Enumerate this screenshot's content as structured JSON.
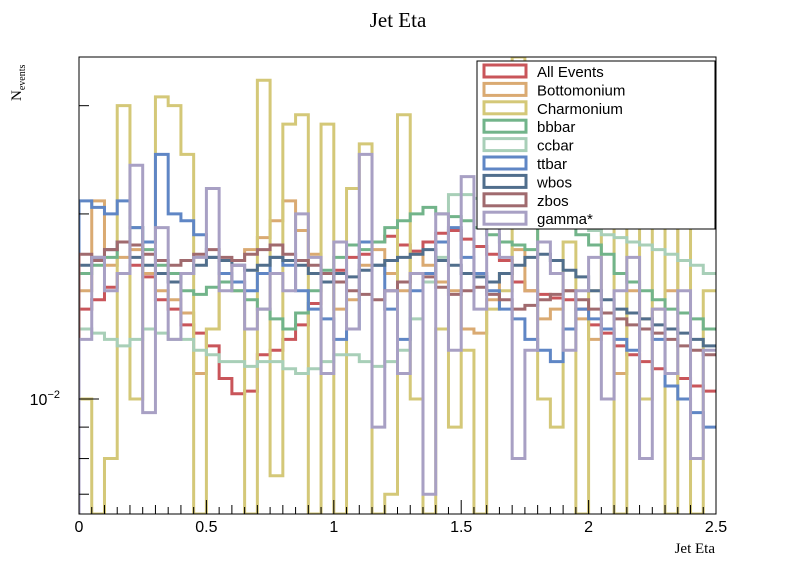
{
  "chart_data": {
    "type": "histogram-step",
    "title": "Jet Eta",
    "xlabel": "Jet Eta",
    "ylabel": "N",
    "ylabel_subscript": "events",
    "xlim": [
      0,
      2.5
    ],
    "ylim": [
      0.0065,
      0.036
    ],
    "yscale": "log",
    "x_ticks": [
      {
        "value": 0,
        "label": "0"
      },
      {
        "value": 0.5,
        "label": "0.5"
      },
      {
        "value": 1,
        "label": "1"
      },
      {
        "value": 1.5,
        "label": "1.5"
      },
      {
        "value": 2,
        "label": "2"
      },
      {
        "value": 2.5,
        "label": "2.5"
      }
    ],
    "y_major_tick": {
      "value": 0.01,
      "label_base": "10",
      "label_exp": "−2"
    },
    "y_minor_ticks": [
      0.007,
      0.008,
      0.009,
      0.02,
      0.03
    ],
    "grid": false,
    "legend_position": "top-right",
    "bin_edges_start": 0,
    "bin_width": 0.05,
    "series": [
      {
        "name": "All Events",
        "color": "#c9555a",
        "values": [
          0.014,
          0.0145,
          0.0152,
          0.016,
          0.0165,
          0.0158,
          0.0145,
          0.014,
          0.0132,
          0.0128,
          0.0122,
          0.0108,
          0.0102,
          0.0103,
          0.0118,
          0.012,
          0.0125,
          0.0132,
          0.0143,
          0.0155,
          0.0162,
          0.017,
          0.0172,
          0.018,
          0.0184,
          0.0178,
          0.0174,
          0.018,
          0.0186,
          0.0188,
          0.0182,
          0.0177,
          0.0172,
          0.0168,
          0.0155,
          0.015,
          0.0148,
          0.0146,
          0.0145,
          0.014,
          0.0132,
          0.0128,
          0.0122,
          0.0118,
          0.0115,
          0.0112,
          0.011,
          0.0108,
          0.0105,
          0.0103
        ]
      },
      {
        "name": "Bottomonium",
        "color": "#daaa72",
        "values": [
          0.015,
          0.021,
          0.0165,
          0.017,
          0.0175,
          0.016,
          0.015,
          0.0145,
          0.0138,
          0.011,
          0.013,
          0.0155,
          0.0168,
          0.0175,
          0.0183,
          0.0195,
          0.021,
          0.0188,
          0.0172,
          0.016,
          0.014,
          0.0145,
          0.0165,
          0.0175,
          0.016,
          0.015,
          0.0172,
          0.0165,
          0.0155,
          0.015,
          0.013,
          0.0128,
          0.0145,
          0.016,
          0.0175,
          0.015,
          0.0135,
          0.014,
          0.015,
          0.0135,
          0.0125,
          0.013,
          0.011,
          0.015,
          0.0135,
          0.014,
          0.015,
          0.0225,
          0.022,
          0.023
        ]
      },
      {
        "name": "Charmonium",
        "color": "#d4c878",
        "values": [
          0.01,
          0.0065,
          0.008,
          0.03,
          0.01,
          0.018,
          0.031,
          0.03,
          0.025,
          0.0065,
          0.013,
          0.016,
          0.015,
          0.0065,
          0.033,
          0.0075,
          0.028,
          0.029,
          0.0065,
          0.028,
          0.0065,
          0.022,
          0.026,
          0.0065,
          0.007,
          0.029,
          0.01,
          0.0065,
          0.013,
          0.009,
          0.012,
          0.0065,
          0.014,
          0.015,
          0.036,
          0.02,
          0.01,
          0.009,
          0.018,
          0.0065,
          0.015,
          0.02,
          0.0065,
          0.025,
          0.01,
          0.03,
          0.0065,
          0.029,
          0.0065,
          0.015
        ]
      },
      {
        "name": "bbbar",
        "color": "#72b48a",
        "values": [
          0.016,
          0.0165,
          0.017,
          0.018,
          0.019,
          0.0175,
          0.0165,
          0.016,
          0.015,
          0.0148,
          0.0152,
          0.0155,
          0.015,
          0.0145,
          0.014,
          0.0135,
          0.013,
          0.0138,
          0.015,
          0.0162,
          0.017,
          0.0178,
          0.0175,
          0.018,
          0.019,
          0.0195,
          0.02,
          0.0205,
          0.02,
          0.0198,
          0.0195,
          0.019,
          0.0185,
          0.018,
          0.0178,
          0.0175,
          0.019,
          0.02,
          0.0195,
          0.0185,
          0.0178,
          0.0172,
          0.016,
          0.0155,
          0.015,
          0.0145,
          0.014,
          0.0138,
          0.0135,
          0.013
        ]
      },
      {
        "name": "ccbar",
        "color": "#a8cfb8",
        "values": [
          0.013,
          0.0128,
          0.0125,
          0.0122,
          0.0125,
          0.013,
          0.0128,
          0.0125,
          0.0125,
          0.012,
          0.0118,
          0.0115,
          0.0115,
          0.0113,
          0.0115,
          0.0115,
          0.0112,
          0.011,
          0.0112,
          0.0115,
          0.0118,
          0.0118,
          0.0115,
          0.0113,
          0.0115,
          0.012,
          0.0135,
          0.0155,
          0.017,
          0.0215,
          0.0215,
          0.0212,
          0.021,
          0.0208,
          0.0205,
          0.0205,
          0.02,
          0.0198,
          0.0195,
          0.0192,
          0.0188,
          0.0185,
          0.0183,
          0.018,
          0.0178,
          0.0175,
          0.0172,
          0.0168,
          0.0165,
          0.016
        ]
      },
      {
        "name": "ttbar",
        "color": "#5f86c5",
        "values": [
          0.021,
          0.0205,
          0.02,
          0.021,
          0.019,
          0.018,
          0.025,
          0.02,
          0.0195,
          0.0185,
          0.017,
          0.016,
          0.0155,
          0.015,
          0.016,
          0.017,
          0.0165,
          0.015,
          0.014,
          0.0135,
          0.0125,
          0.013,
          0.018,
          0.0165,
          0.014,
          0.0125,
          0.015,
          0.016,
          0.018,
          0.019,
          0.017,
          0.016,
          0.015,
          0.014,
          0.0135,
          0.0125,
          0.012,
          0.0115,
          0.013,
          0.014,
          0.0135,
          0.013,
          0.0125,
          0.012,
          0.013,
          0.0125,
          0.0105,
          0.01,
          0.0095,
          0.009
        ]
      },
      {
        "name": "wbos",
        "color": "#506e8c",
        "values": [
          0.0165,
          0.017,
          0.0175,
          0.018,
          0.017,
          0.0165,
          0.016,
          0.0155,
          0.016,
          0.0165,
          0.017,
          0.0168,
          0.0165,
          0.0162,
          0.0165,
          0.017,
          0.0168,
          0.0165,
          0.016,
          0.0155,
          0.016,
          0.0158,
          0.0162,
          0.0165,
          0.0168,
          0.017,
          0.0172,
          0.0175,
          0.0168,
          0.0165,
          0.016,
          0.0158,
          0.0155,
          0.016,
          0.0165,
          0.017,
          0.0172,
          0.0168,
          0.0162,
          0.0158,
          0.015,
          0.0145,
          0.014,
          0.0138,
          0.0135,
          0.0132,
          0.013,
          0.0128,
          0.0125,
          0.0122
        ]
      },
      {
        "name": "zbos",
        "color": "#a06a6e",
        "values": [
          0.0172,
          0.0168,
          0.0175,
          0.018,
          0.0178,
          0.0172,
          0.0168,
          0.0165,
          0.0168,
          0.0172,
          0.0175,
          0.017,
          0.0168,
          0.0172,
          0.0175,
          0.0178,
          0.0172,
          0.0168,
          0.0165,
          0.016,
          0.0155,
          0.015,
          0.0148,
          0.0145,
          0.015,
          0.0155,
          0.016,
          0.0158,
          0.0152,
          0.0148,
          0.015,
          0.0152,
          0.0148,
          0.0145,
          0.014,
          0.0142,
          0.0145,
          0.0148,
          0.015,
          0.0145,
          0.014,
          0.0138,
          0.0135,
          0.0132,
          0.013,
          0.0128,
          0.0125,
          0.0122,
          0.012,
          0.0118
        ]
      },
      {
        "name": "gamma*",
        "color": "#a8a0c4",
        "values": [
          0.0125,
          0.017,
          0.015,
          0.016,
          0.024,
          0.0095,
          0.019,
          0.0125,
          0.016,
          0.017,
          0.022,
          0.015,
          0.0165,
          0.013,
          0.014,
          0.016,
          0.015,
          0.02,
          0.017,
          0.011,
          0.018,
          0.013,
          0.025,
          0.009,
          0.015,
          0.011,
          0.016,
          0.007,
          0.02,
          0.012,
          0.023,
          0.014,
          0.03,
          0.017,
          0.008,
          0.012,
          0.018,
          0.016,
          0.012,
          0.015,
          0.017,
          0.01,
          0.015,
          0.017,
          0.008,
          0.014,
          0.011,
          0.015,
          0.008,
          0.012
        ]
      }
    ]
  }
}
